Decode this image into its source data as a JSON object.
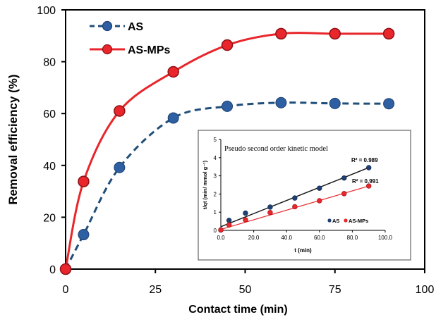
{
  "chart_data": [
    {
      "type": "line",
      "title": "",
      "xlabel": "Contact time (min)",
      "ylabel": "Removal efficiency  (%)",
      "xlim": [
        0,
        100
      ],
      "ylim": [
        0,
        100
      ],
      "xticks": [
        "0",
        "25",
        "50",
        "75",
        "100"
      ],
      "yticks": [
        "0",
        "20",
        "40",
        "60",
        "80",
        "100"
      ],
      "legend_position": "top-left",
      "grid": false,
      "series": [
        {
          "name": "AS",
          "style": "dashed",
          "color": "#1f4e79",
          "x": [
            0,
            5,
            15,
            30,
            45,
            60,
            75,
            90
          ],
          "y": [
            0,
            13.3,
            39.2,
            58.3,
            62.8,
            64.2,
            63.9,
            63.8
          ]
        },
        {
          "name": "AS-MPs",
          "style": "solid",
          "color": "#e8262b",
          "x": [
            0,
            5,
            15,
            30,
            45,
            60,
            75,
            90
          ],
          "y": [
            0,
            33.8,
            61.0,
            76.1,
            86.4,
            90.8,
            90.8,
            90.8
          ]
        }
      ]
    },
    {
      "type": "scatter",
      "title": "Pseudo second order kinetic model",
      "xlabel": "t (min)",
      "ylabel": "t/qt (min/ mmol g⁻¹)",
      "xlim": [
        0,
        100
      ],
      "ylim": [
        0,
        5
      ],
      "xticks": [
        "0.0",
        "20.0",
        "40.0",
        "60.0",
        "80.0",
        "100.0"
      ],
      "yticks": [
        "0",
        "1",
        "2",
        "3",
        "4",
        "5"
      ],
      "legend_position": "bottom-right",
      "series": [
        {
          "name": "AS",
          "color": "#1f3f73",
          "line_color": "#1a1a1a",
          "x": [
            0,
            5,
            15,
            30,
            45,
            60,
            75,
            90
          ],
          "y": [
            0.02,
            0.55,
            0.95,
            1.28,
            1.78,
            2.32,
            2.88,
            3.45
          ],
          "fit": [
            0.2,
            3.45
          ],
          "r2_label": "R² = 0.989"
        },
        {
          "name": "AS-MPs",
          "color": "#e8262b",
          "line_color": "#e8262b",
          "x": [
            0,
            5,
            15,
            30,
            45,
            60,
            75,
            90
          ],
          "y": [
            0.02,
            0.3,
            0.58,
            0.98,
            1.3,
            1.63,
            2.02,
            2.44
          ],
          "fit": [
            0.05,
            2.44
          ],
          "r2_label": "R² = 0.991"
        }
      ]
    }
  ]
}
